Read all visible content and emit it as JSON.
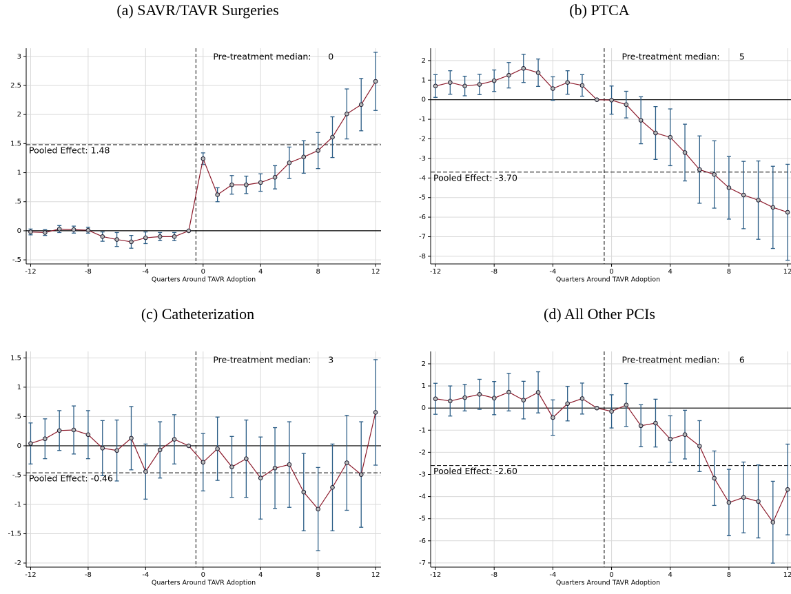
{
  "chart_data": [
    {
      "type": "line",
      "title": "(a) SAVR/TAVR Surgeries",
      "xlabel": "Quarters Around TAVR Adoption",
      "x": [
        -12,
        -11,
        -10,
        -9,
        -8,
        -7,
        -6,
        -5,
        -4,
        -3,
        -2,
        -1,
        0,
        1,
        2,
        3,
        4,
        5,
        6,
        7,
        8,
        9,
        10,
        11,
        12
      ],
      "values": [
        -0.02,
        -0.03,
        0.03,
        0.02,
        0.01,
        -0.1,
        -0.15,
        -0.19,
        -0.12,
        -0.1,
        -0.1,
        0,
        1.24,
        0.62,
        0.79,
        0.79,
        0.83,
        0.92,
        1.17,
        1.27,
        1.38,
        1.61,
        2.01,
        2.17,
        2.57
      ],
      "errors": [
        0.05,
        0.05,
        0.06,
        0.06,
        0.05,
        0.08,
        0.12,
        0.11,
        0.1,
        0.07,
        0.07,
        0,
        0.1,
        0.12,
        0.16,
        0.15,
        0.15,
        0.2,
        0.27,
        0.28,
        0.31,
        0.35,
        0.43,
        0.45,
        0.5
      ],
      "color": "#8b1a2b",
      "error_color": "#2b5d86",
      "xlim": [
        -12.31,
        12.38
      ],
      "ylim": [
        -0.57,
        3.14
      ],
      "xticks": [
        -12,
        -8,
        -4,
        0,
        4,
        8,
        12
      ],
      "yticks": [
        {
          "value": -0.5,
          "label": "-.5"
        },
        0,
        {
          "value": 0.5,
          "label": ".5"
        },
        1,
        1.5,
        2,
        2.5,
        3
      ],
      "grid": true,
      "treatment_x": -0.5,
      "pooled_effect": 1.48,
      "pooled_label": "Pooled Effect: 1.48",
      "median_label": "Pre-treatment median:",
      "median_value": 0
    },
    {
      "type": "line",
      "title": "(b) PTCA",
      "xlabel": "Quarters Around TAVR Adoption",
      "x": [
        -12,
        -11,
        -10,
        -9,
        -8,
        -7,
        -6,
        -5,
        -4,
        -3,
        -2,
        -1,
        0,
        1,
        2,
        3,
        4,
        5,
        6,
        7,
        8,
        9,
        10,
        11,
        12
      ],
      "values": [
        0.7,
        0.88,
        0.7,
        0.78,
        0.97,
        1.25,
        1.6,
        1.38,
        0.57,
        0.88,
        0.73,
        0,
        -0.02,
        -0.25,
        -1.05,
        -1.7,
        -1.92,
        -2.7,
        -3.57,
        -3.82,
        -4.5,
        -4.87,
        -5.13,
        -5.5,
        -5.75
      ],
      "errors": [
        0.58,
        0.6,
        0.5,
        0.52,
        0.55,
        0.65,
        0.72,
        0.7,
        0.6,
        0.6,
        0.55,
        0,
        0.72,
        0.68,
        1.2,
        1.35,
        1.45,
        1.45,
        1.72,
        1.72,
        1.6,
        1.72,
        2.0,
        2.1,
        2.45
      ],
      "color": "#8b1a2b",
      "error_color": "#2b5d86",
      "xlim": [
        -12.33,
        12.23
      ],
      "ylim": [
        -8.39,
        2.63
      ],
      "xticks": [
        -12,
        -8,
        -4,
        0,
        4,
        8,
        12
      ],
      "yticks": [
        -8,
        -7,
        -6,
        -5,
        -4,
        -3,
        -2,
        -1,
        0,
        1,
        2
      ],
      "grid": true,
      "treatment_x": -0.5,
      "pooled_effect": -3.7,
      "pooled_label": "Pooled Effect: -3.70",
      "median_label": "Pre-treatment median:",
      "median_value": 5
    },
    {
      "type": "line",
      "title": "(c) Catheterization",
      "xlabel": "Quarters Around TAVR Adoption",
      "x": [
        -12,
        -11,
        -10,
        -9,
        -8,
        -7,
        -6,
        -5,
        -4,
        -3,
        -2,
        -1,
        0,
        1,
        2,
        3,
        4,
        5,
        6,
        7,
        8,
        9,
        10,
        11,
        12
      ],
      "values": [
        0.04,
        0.12,
        0.26,
        0.27,
        0.19,
        -0.04,
        -0.08,
        0.13,
        -0.44,
        -0.07,
        0.11,
        0,
        -0.28,
        -0.05,
        -0.36,
        -0.22,
        -0.55,
        -0.38,
        -0.32,
        -0.79,
        -1.08,
        -0.71,
        -0.29,
        -0.49,
        0.57
      ],
      "errors": [
        0.35,
        0.34,
        0.34,
        0.41,
        0.41,
        0.47,
        0.52,
        0.54,
        0.47,
        0.48,
        0.42,
        0,
        0.49,
        0.54,
        0.52,
        0.66,
        0.7,
        0.69,
        0.73,
        0.66,
        0.71,
        0.74,
        0.81,
        0.9,
        0.9
      ],
      "color": "#8b1a2b",
      "error_color": "#2b5d86",
      "xlim": [
        -12.31,
        12.38
      ],
      "ylim": [
        -2.07,
        1.61
      ],
      "xticks": [
        -12,
        -8,
        -4,
        0,
        4,
        8,
        12
      ],
      "yticks": [
        -2,
        -1.5,
        -1,
        {
          "value": -0.5,
          "label": "-.5"
        },
        0,
        {
          "value": 0.5,
          "label": ".5"
        },
        1,
        1.5
      ],
      "grid": true,
      "treatment_x": -0.5,
      "pooled_effect": -0.46,
      "pooled_label": "Pooled Effect: -0.46",
      "median_label": "Pre-treatment median:",
      "median_value": 3
    },
    {
      "type": "line",
      "title": "(d) All Other PCIs",
      "xlabel": "Quarters Around TAVR Adoption",
      "x": [
        -12,
        -11,
        -10,
        -9,
        -8,
        -7,
        -6,
        -5,
        -4,
        -3,
        -2,
        -1,
        0,
        1,
        2,
        3,
        4,
        5,
        6,
        7,
        8,
        9,
        10,
        11,
        12
      ],
      "values": [
        0.42,
        0.32,
        0.47,
        0.62,
        0.45,
        0.72,
        0.36,
        0.71,
        -0.43,
        0.2,
        0.43,
        0,
        -0.15,
        0.14,
        -0.8,
        -0.68,
        -1.4,
        -1.2,
        -1.72,
        -3.17,
        -4.27,
        -4.04,
        -4.22,
        -5.16,
        -3.68
      ],
      "errors": [
        0.7,
        0.68,
        0.6,
        0.68,
        0.75,
        0.85,
        0.85,
        0.93,
        0.8,
        0.78,
        0.7,
        0,
        0.75,
        0.97,
        0.95,
        1.08,
        1.05,
        1.1,
        1.15,
        1.23,
        1.5,
        1.6,
        1.65,
        1.85,
        2.05
      ],
      "color": "#8b1a2b",
      "error_color": "#2b5d86",
      "xlim": [
        -12.33,
        12.23
      ],
      "ylim": [
        -7.19,
        2.56
      ],
      "xticks": [
        -12,
        -8,
        -4,
        0,
        4,
        8,
        12
      ],
      "yticks": [
        -7,
        -6,
        -5,
        -4,
        -3,
        -2,
        -1,
        0,
        1,
        2
      ],
      "grid": true,
      "treatment_x": -0.5,
      "pooled_effect": -2.6,
      "pooled_label": "Pooled Effect: -2.60",
      "median_label": "Pre-treatment median:",
      "median_value": 6
    }
  ]
}
